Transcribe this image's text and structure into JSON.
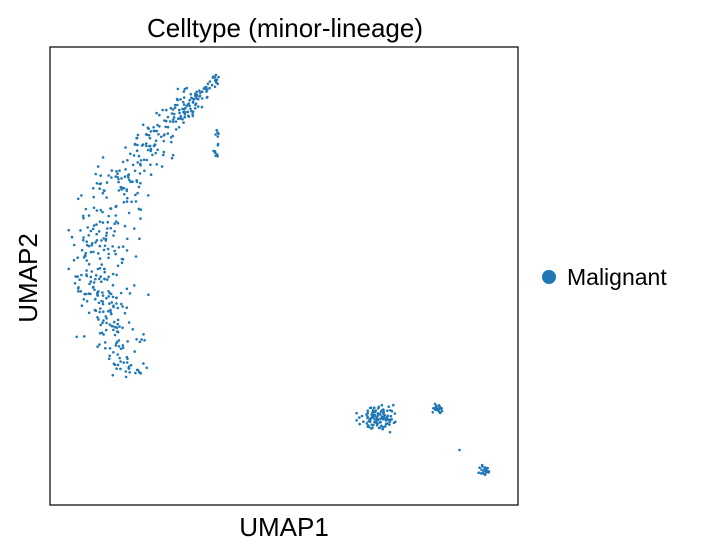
{
  "chart_data": {
    "type": "scatter",
    "title": "Celltype (minor-lineage)",
    "xlabel": "UMAP1",
    "ylabel": "UMAP2",
    "ticks": "none",
    "grid": false,
    "legend_placement": "right",
    "xlim": [
      0,
      100
    ],
    "ylim": [
      0,
      100
    ],
    "series": [
      {
        "name": "Malignant",
        "color": "#1f77b4",
        "clusters": [
          {
            "region": "upper-left arc",
            "x_range": [
              4,
              38
            ],
            "y_range": [
              26,
              95
            ],
            "points": 440
          },
          {
            "region": "lower-right cluster",
            "x_range": [
              60,
              86
            ],
            "y_range": [
              11,
              27
            ],
            "points": 130
          },
          {
            "region": "bottom-right small cluster",
            "x_range": [
              89,
              96
            ],
            "y_range": [
              3,
              11
            ],
            "points": 22
          }
        ]
      }
    ]
  }
}
